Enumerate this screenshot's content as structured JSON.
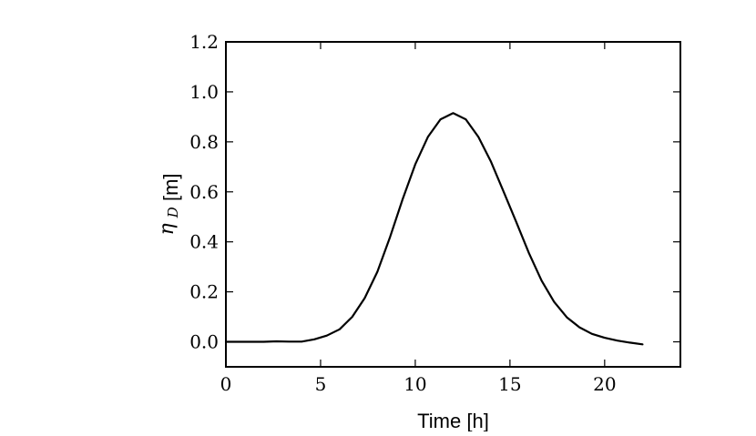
{
  "chart_data": {
    "type": "line",
    "title": "",
    "xlabel": "Time [h]",
    "ylabel": {
      "symbol": "η",
      "subscript": "D",
      "unit": "[m]"
    },
    "xlim": [
      0,
      24
    ],
    "ylim": [
      -0.1,
      1.2
    ],
    "xticks": [
      0,
      5,
      10,
      15,
      20
    ],
    "xtick_labels": [
      "0",
      "5",
      "10",
      "15",
      "20"
    ],
    "yticks": [
      0.0,
      0.2,
      0.4,
      0.6,
      0.8,
      1.0,
      1.2
    ],
    "ytick_labels": [
      "0.0",
      "0.2",
      "0.4",
      "0.6",
      "0.8",
      "1.0",
      "1.2"
    ],
    "grid": false,
    "legend": null,
    "line_color": "#000000",
    "series": [
      {
        "x": [
          0,
          0.67,
          1.33,
          2.0,
          2.67,
          3.33,
          4.0,
          4.67,
          5.33,
          6.0,
          6.67,
          7.33,
          8.0,
          8.67,
          9.33,
          10.0,
          10.67,
          11.33,
          12.0,
          12.67,
          13.33,
          14.0,
          14.67,
          15.33,
          16.0,
          16.67,
          17.33,
          18.0,
          18.67,
          19.33,
          20.0,
          20.67,
          21.33,
          22.0
        ],
        "y": [
          0.0,
          0.0,
          0.0,
          0.0,
          0.002,
          0.001,
          0.001,
          0.01,
          0.025,
          0.05,
          0.1,
          0.175,
          0.28,
          0.42,
          0.57,
          0.71,
          0.82,
          0.89,
          0.915,
          0.89,
          0.82,
          0.72,
          0.6,
          0.48,
          0.355,
          0.245,
          0.16,
          0.098,
          0.058,
          0.032,
          0.016,
          0.005,
          -0.003,
          -0.01
        ]
      }
    ]
  }
}
